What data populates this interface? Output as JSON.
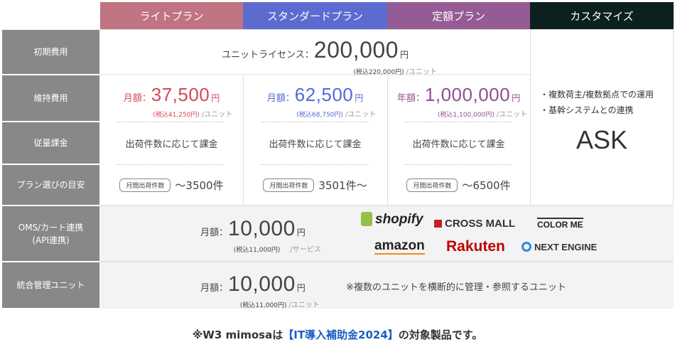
{
  "headers": [
    {
      "label": "ライトプラン",
      "color": "#c07380"
    },
    {
      "label": "スタンダードプラン",
      "color": "#5b6bd0"
    },
    {
      "label": "定額プラン",
      "color": "#945b94"
    },
    {
      "label": "カスタマイズ",
      "color": "#0c2020"
    }
  ],
  "rows": {
    "initial": "初期費用",
    "maintenance": "維持費用",
    "usage": "従量課金",
    "guide": "プラン選びの目安",
    "oms": "OMS/カート連携\n(API連携)",
    "unified": "統合管理ユニット"
  },
  "initial": {
    "label": "ユニットライセンス：",
    "amount": "200,000",
    "yen": "円",
    "tax": "(税込220,000円)",
    "unit": "/ユニット"
  },
  "maintenance": [
    {
      "label": "月額：",
      "amount": "37,500",
      "yen": "円",
      "tax": "(税込41,250円)",
      "unit": "/ユニット",
      "color": "#d4475a"
    },
    {
      "label": "月額：",
      "amount": "62,500",
      "yen": "円",
      "tax": "(税込68,750円)",
      "unit": "/ユニット",
      "color": "#5468d4"
    },
    {
      "label": "年額：",
      "amount": "1,000,000",
      "yen": "円",
      "tax": "(税込1,100,000円)",
      "unit": "/ユニット",
      "color": "#8e4f8e"
    }
  ],
  "usage": [
    "出荷件数に応じて課金",
    "出荷件数に応じて課金",
    "出荷件数に応じて課金"
  ],
  "guide": [
    {
      "tag": "月間出荷件数",
      "range": "〜3500件"
    },
    {
      "tag": "月間出荷件数",
      "range": "3501件〜"
    },
    {
      "tag": "月間出荷件数",
      "range": "〜6500件"
    }
  ],
  "custom": {
    "bullets": [
      "・複数荷主/複数拠点での運用",
      "・基幹システムとの連携"
    ],
    "ask": "ASK"
  },
  "oms": {
    "label": "月額：",
    "amount": "10,000",
    "yen": "円",
    "tax": "(税込11,000円)",
    "unit": "/サービス",
    "logos": [
      "shopify",
      "CROSS MALL",
      "COLOR ME",
      "amazon",
      "Rakuten",
      "NEXT ENGINE"
    ]
  },
  "unified": {
    "label": "月額：",
    "amount": "10,000",
    "yen": "円",
    "tax": "(税込11,000円)",
    "unit": "/ユニット",
    "note": "※複数のユニットを横断的に管理・参照するユニット"
  },
  "footer": {
    "pre": "※W3 mimosaは",
    "highlight": "【IT導入補助金2024】",
    "post": "の対象製品です。",
    "highlight_color": "#1a5fc0"
  }
}
